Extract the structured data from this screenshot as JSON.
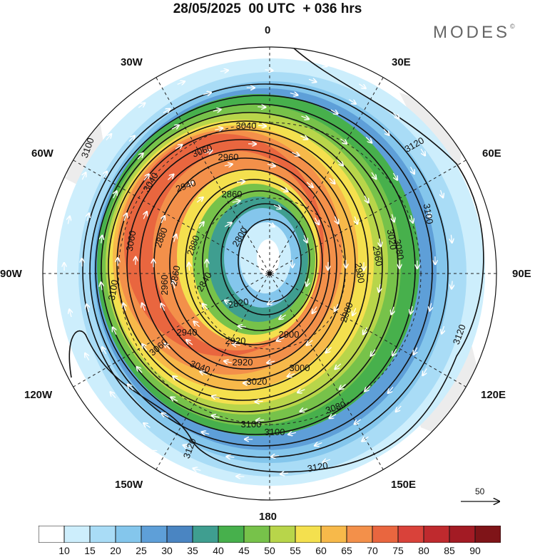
{
  "title": "28/05/2025  00 UTC  + 036 hrs",
  "brand": "MODES",
  "brand_mark": "©",
  "longitude_labels": {
    "deg0": "0",
    "deg30e": "30E",
    "deg60e": "60E",
    "deg90e": "90E",
    "deg120e": "120E",
    "deg150e": "150E",
    "deg180": "180",
    "deg150w": "150W",
    "deg120w": "120W",
    "deg90w": "90W",
    "deg60w": "60W",
    "deg30w": "30W"
  },
  "reference_vector": {
    "label": "50"
  },
  "colorbar": {
    "labels": [
      "10",
      "15",
      "20",
      "25",
      "30",
      "35",
      "40",
      "45",
      "50",
      "55",
      "60",
      "65",
      "70",
      "75",
      "80",
      "85",
      "90"
    ],
    "colors": [
      "#ffffff",
      "#cdeefc",
      "#a9dcf6",
      "#84c6ec",
      "#5e9fd8",
      "#4a85c2",
      "#3f9e90",
      "#47b04c",
      "#77c24a",
      "#b8d54a",
      "#f4e04e",
      "#f7b94a",
      "#f3904a",
      "#e9663f",
      "#d9423a",
      "#bf2a2e",
      "#a31b24",
      "#7f1418"
    ]
  },
  "contour_labels": [
    "3040",
    "2960",
    "2860",
    "2880",
    "2800",
    "2820",
    "2840",
    "2860",
    "2880",
    "2900",
    "2920",
    "2940",
    "2960",
    "2980",
    "3000",
    "3020",
    "3040",
    "3060",
    "3080",
    "3100",
    "3120",
    "3060",
    "3040",
    "2980",
    "2960",
    "2940",
    "2920",
    "3020",
    "3060",
    "3100",
    "3100",
    "3120",
    "3120",
    "3120",
    "3080",
    "3100",
    "3100"
  ]
}
